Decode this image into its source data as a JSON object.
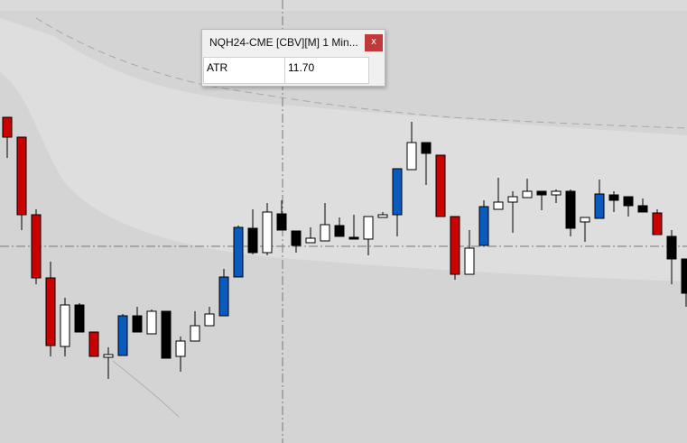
{
  "chart_data": {
    "type": "candlestick",
    "ylim": [
      0,
      100
    ],
    "series": [
      {
        "open": [
          72.2,
          67.8,
          50.6,
          36.6,
          21.4,
          30.6,
          24.6,
          19,
          19.4,
          28.2,
          24.2,
          29.2,
          19.2,
          22.6,
          26,
          28.2,
          36.8,
          47.6,
          42.2,
          50.8,
          47,
          44.4,
          44.8,
          48.2,
          45.6,
          45.2,
          50,
          50.6,
          60.6,
          66.6,
          63.8,
          50.2,
          37.4,
          43.8,
          51.8,
          53.4,
          54.4,
          55.8,
          55,
          55.8,
          49,
          49.8,
          55,
          54.6,
          52.6,
          51,
          45.8,
          40.8
        ],
        "high": [
          72.2,
          67.8,
          51.8,
          40.2,
          32.2,
          31,
          24.6,
          21.2,
          28.6,
          30.2,
          29.6,
          29.2,
          23.6,
          29.2,
          30.2,
          38.6,
          48.2,
          51.8,
          53.2,
          53.8,
          47,
          47.8,
          53.2,
          50,
          50.6,
          50.2,
          51.2,
          60.8,
          71.2,
          66.6,
          63.8,
          50.2,
          47.2,
          53.8,
          58.8,
          55.8,
          58.6,
          55.8,
          56.2,
          56.2,
          50,
          58.4,
          55.8,
          54.6,
          54.2,
          51.8,
          47.2,
          40.8
        ],
        "low": [
          63.2,
          47.2,
          35.2,
          19.2,
          19.2,
          24.6,
          19.2,
          14.2,
          19.4,
          24.6,
          24.2,
          18.8,
          15.8,
          22.6,
          26,
          28.2,
          36.8,
          41.8,
          41.6,
          47.2,
          42.2,
          44.4,
          44.8,
          45.8,
          45.2,
          41.6,
          50,
          45.8,
          60.6,
          57.2,
          50.2,
          36.2,
          37.4,
          43.8,
          51.8,
          46.6,
          54.4,
          51.6,
          53.2,
          45.8,
          44.6,
          49.8,
          51.2,
          50.2,
          51.2,
          46.2,
          35.2,
          30.2
        ],
        "close": [
          67.8,
          50.6,
          36.6,
          21.6,
          30.6,
          24.6,
          19.2,
          19.6,
          28.2,
          24.6,
          29.2,
          18.8,
          22.6,
          26,
          28.6,
          36.8,
          47.8,
          42.2,
          51.2,
          47.2,
          43.8,
          45.4,
          48.4,
          45.8,
          45.2,
          50.2,
          50.6,
          60.8,
          66.6,
          64.2,
          50.2,
          37.4,
          43.2,
          52.4,
          53.4,
          54.6,
          55.8,
          55,
          55.8,
          47.6,
          50,
          55.2,
          53.8,
          52.6,
          51.2,
          46.2,
          40.8,
          33.2
        ],
        "colors": [
          "#cc0000",
          "#cc0000",
          "#cc0000",
          "#cc0000",
          "#ffffff",
          "#000000",
          "#cc0000",
          "#ffffff",
          "#0a5bbf",
          "#000000",
          "#ffffff",
          "#000000",
          "#ffffff",
          "#ffffff",
          "#ffffff",
          "#0a5bbf",
          "#0a5bbf",
          "#000000",
          "#ffffff",
          "#000000",
          "#000000",
          "#ffffff",
          "#ffffff",
          "#000000",
          "#000000",
          "#ffffff",
          "#ffffff",
          "#0a5bbf",
          "#ffffff",
          "#000000",
          "#cc0000",
          "#cc0000",
          "#ffffff",
          "#0a5bbf",
          "#ffffff",
          "#ffffff",
          "#ffffff",
          "#000000",
          "#ffffff",
          "#000000",
          "#ffffff",
          "#0a5bbf",
          "#000000",
          "#000000",
          "#000000",
          "#cc0000",
          "#000000",
          "#000000"
        ]
      }
    ]
  },
  "tooltip": {
    "title": "NQH24-CME [CBV][M]  1 Min...",
    "close": "x",
    "rows": [
      [
        "ATR",
        "11.70"
      ]
    ]
  }
}
